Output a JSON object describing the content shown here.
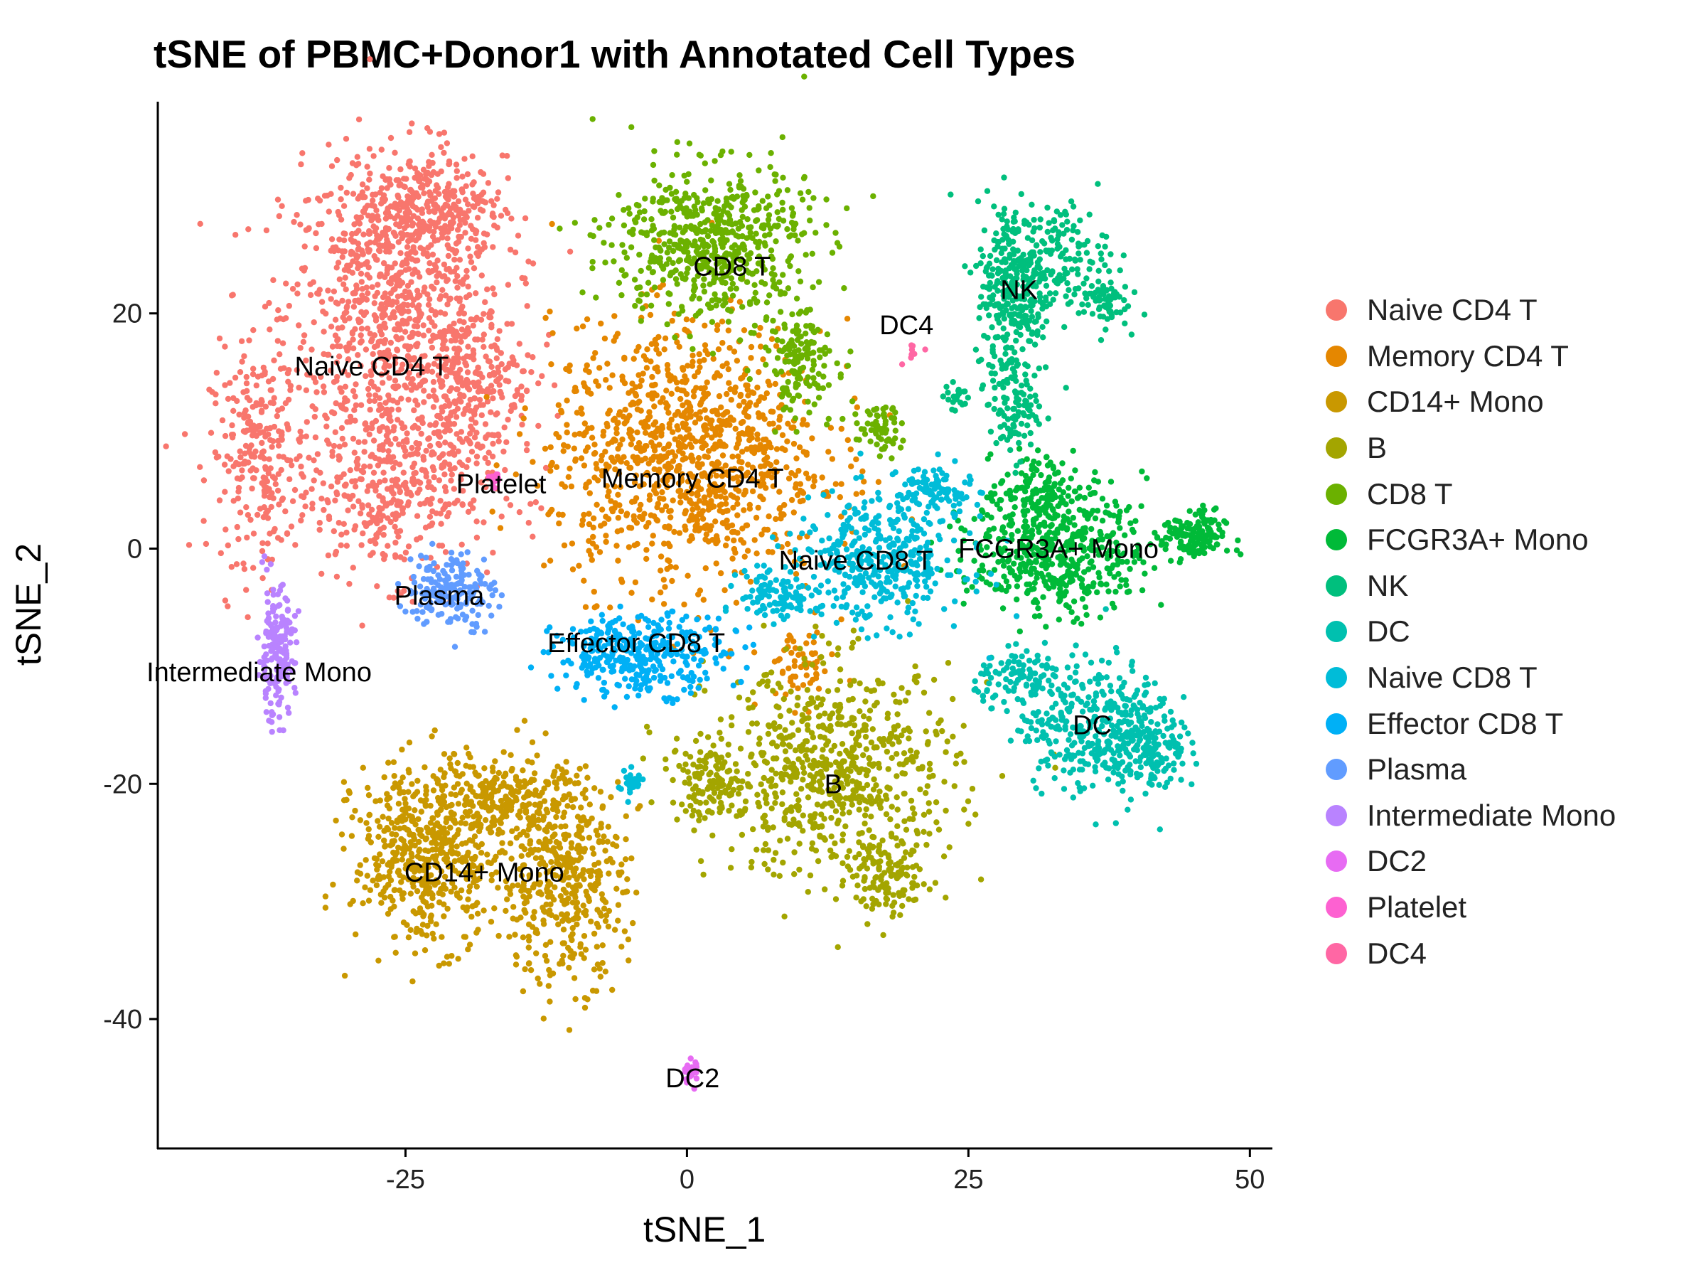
{
  "chart_data": {
    "type": "scatter",
    "title": "tSNE of PBMC+Donor1 with Annotated Cell Types",
    "xlabel": "tSNE_1",
    "ylabel": "tSNE_2",
    "xlim": [
      -47,
      52
    ],
    "ylim": [
      -51,
      38
    ],
    "x_ticks": [
      -25,
      0,
      25,
      50
    ],
    "y_ticks": [
      -40,
      -20,
      0,
      20
    ],
    "grid": false,
    "legend_position": "right",
    "series": [
      {
        "name": "Naive CD4 T",
        "color": "#F8766D",
        "label": "Naive CD4 T",
        "label_x": -28,
        "label_y": 15.5,
        "blobs": [
          [
            -26,
            20,
            9,
            12,
            900
          ],
          [
            -38,
            8,
            4,
            8,
            250
          ],
          [
            -26,
            5,
            8,
            7,
            380
          ],
          [
            -23,
            29,
            6,
            4,
            280
          ],
          [
            -19,
            14,
            5,
            6,
            220
          ]
        ]
      },
      {
        "name": "Memory CD4 T",
        "color": "#E58700",
        "label": "Memory CD4 T",
        "label_x": 0.5,
        "label_y": 6,
        "blobs": [
          [
            0,
            8,
            11,
            10,
            1100
          ],
          [
            10,
            -10,
            3,
            3,
            60
          ]
        ]
      },
      {
        "name": "CD14+ Mono",
        "color": "#C99800",
        "label": "CD14+ Mono",
        "label_x": -18,
        "label_y": -27.5,
        "blobs": [
          [
            -23,
            -26,
            6,
            7,
            550
          ],
          [
            -11,
            -28,
            5,
            8,
            450
          ],
          [
            -16,
            -21,
            6,
            3,
            200
          ]
        ]
      },
      {
        "name": "B",
        "color": "#A3A500",
        "label": "B",
        "label_x": 13,
        "label_y": -20,
        "blobs": [
          [
            13,
            -19,
            10,
            8,
            700
          ],
          [
            18,
            -28,
            3,
            3,
            120
          ],
          [
            2,
            -20,
            3,
            3,
            110
          ]
        ]
      },
      {
        "name": "CD8 T",
        "color": "#6BB100",
        "label": "CD8 T",
        "label_x": 4,
        "label_y": 24,
        "blobs": [
          [
            2,
            26,
            8,
            6,
            600
          ],
          [
            10,
            16,
            3,
            4,
            150
          ],
          [
            17,
            10,
            2,
            2,
            60
          ]
        ]
      },
      {
        "name": "FCGR3A+ Mono",
        "color": "#00BA38",
        "label": "FCGR3A+ Mono",
        "label_x": 33,
        "label_y": 0,
        "blobs": [
          [
            33,
            0,
            7,
            5,
            500
          ],
          [
            45,
            1,
            2.5,
            2,
            140
          ],
          [
            31,
            5,
            3,
            3,
            100
          ]
        ]
      },
      {
        "name": "NK",
        "color": "#00BF7D",
        "label": "NK",
        "label_x": 29.5,
        "label_y": 22,
        "blobs": [
          [
            29,
            22,
            3,
            7,
            300
          ],
          [
            33,
            25,
            4,
            4,
            140
          ],
          [
            29,
            12,
            2,
            4,
            100
          ],
          [
            37,
            21,
            2,
            2,
            60
          ],
          [
            24,
            13,
            1,
            1,
            20
          ]
        ]
      },
      {
        "name": "DC",
        "color": "#00C0AF",
        "label": "DC",
        "label_x": 36,
        "label_y": -15,
        "blobs": [
          [
            36,
            -15,
            6,
            5,
            350
          ],
          [
            41,
            -17,
            3,
            4,
            150
          ],
          [
            30,
            -11,
            4,
            2,
            100
          ]
        ]
      },
      {
        "name": "Naive CD8 T",
        "color": "#00BCD8",
        "label": "Naive CD8 T",
        "label_x": 15,
        "label_y": -1,
        "blobs": [
          [
            17,
            -1,
            7,
            5,
            400
          ],
          [
            8,
            -4,
            3,
            2,
            100
          ],
          [
            -5,
            -20,
            1,
            1,
            30
          ],
          [
            22,
            5,
            3,
            2,
            90
          ]
        ]
      },
      {
        "name": "Effector CD8 T",
        "color": "#00B0F6",
        "label": "Effector CD8 T",
        "label_x": -4.5,
        "label_y": -8,
        "blobs": [
          [
            -4,
            -9,
            7,
            3,
            350
          ]
        ]
      },
      {
        "name": "Plasma",
        "color": "#619CFF",
        "label": "Plasma",
        "label_x": -22,
        "label_y": -4,
        "blobs": [
          [
            -21,
            -3.5,
            3.5,
            3,
            180
          ]
        ]
      },
      {
        "name": "Intermediate Mono",
        "color": "#B983FF",
        "label": "Intermediate Mono",
        "label_x": -38,
        "label_y": -10.5,
        "blobs": [
          [
            -36.5,
            -9,
            1.5,
            5,
            180
          ]
        ]
      },
      {
        "name": "DC2",
        "color": "#E76BF3",
        "label": "DC2",
        "label_x": 0.5,
        "label_y": -45,
        "blobs": [
          [
            0.3,
            -44.5,
            0.6,
            1,
            30
          ]
        ]
      },
      {
        "name": "Platelet",
        "color": "#FD61D1",
        "label": "Platelet",
        "label_x": -16.5,
        "label_y": 5.5,
        "blobs": [
          [
            -17,
            6,
            0.5,
            0.8,
            12
          ]
        ]
      },
      {
        "name": "DC4",
        "color": "#FF67A4",
        "label": "DC4",
        "label_x": 19.5,
        "label_y": 19,
        "blobs": [
          [
            20,
            17,
            1,
            1,
            8
          ]
        ]
      }
    ]
  }
}
